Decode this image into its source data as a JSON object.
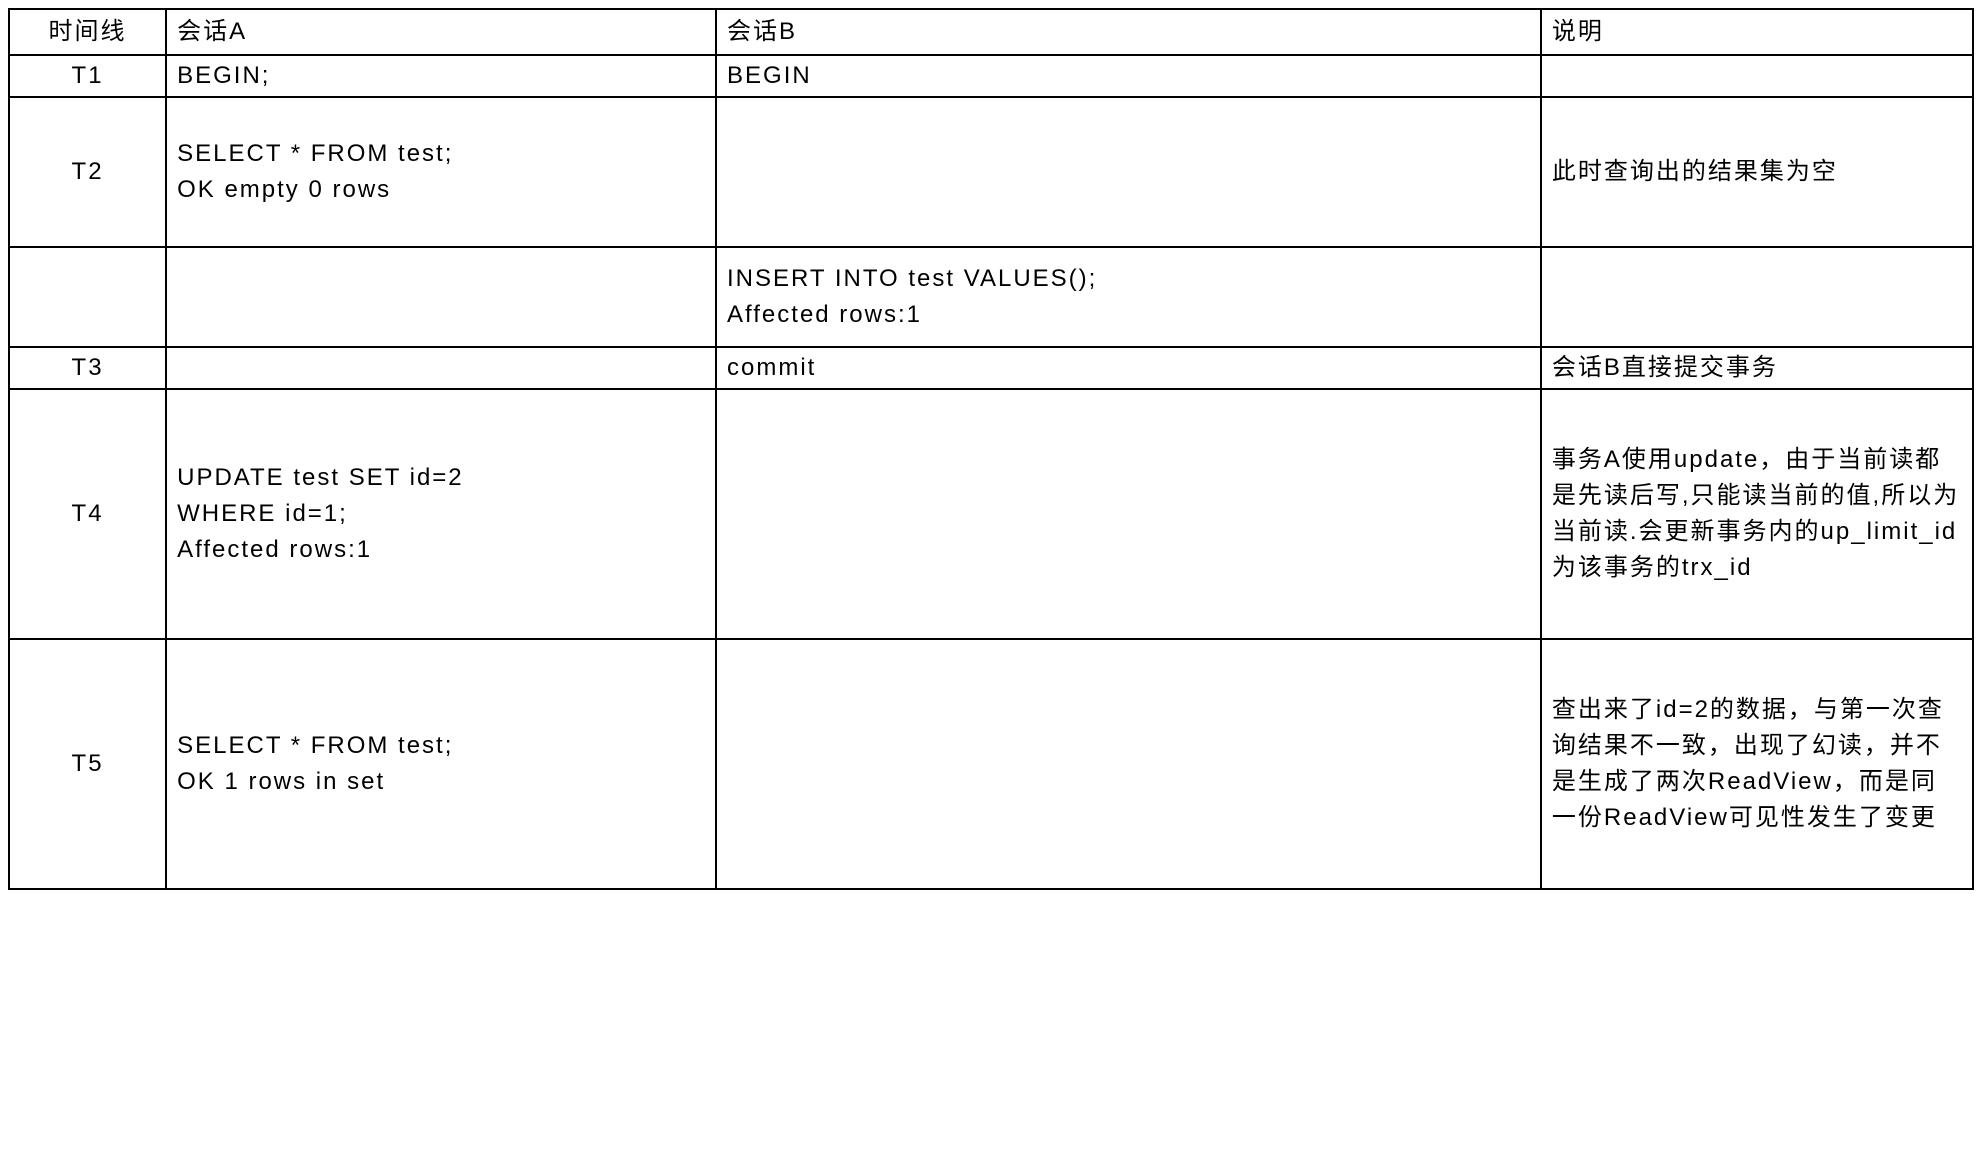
{
  "table": {
    "headers": {
      "timeline": "时间线",
      "sessionA": "会话A",
      "sessionB": "会话B",
      "description": "说明"
    },
    "rows": [
      {
        "timeline": "T1",
        "sessionA": "BEGIN;",
        "sessionB": "BEGIN",
        "description": ""
      },
      {
        "timeline": "T2",
        "sessionA": "SELECT * FROM test;\nOK empty 0 rows",
        "sessionB": "",
        "description": "此时查询出的结果集为空"
      },
      {
        "timeline": "",
        "sessionA": "",
        "sessionB": "INSERT INTO test VALUES();\nAffected rows:1",
        "description": ""
      },
      {
        "timeline": "T3",
        "sessionA": "",
        "sessionB": "commit",
        "description": "会话B直接提交事务"
      },
      {
        "timeline": "T4",
        "sessionA": "UPDATE test SET id=2\nWHERE id=1;\nAffected rows:1",
        "sessionB": "",
        "description": "事务A使用update，由于当前读都是先读后写,只能读当前的值,所以为当前读.会更新事务内的up_limit_id为该事务的trx_id"
      },
      {
        "timeline": "T5",
        "sessionA": "SELECT * FROM test;\nOK 1 rows in set",
        "sessionB": "",
        "description": "查出来了id=2的数据，与第一次查询结果不一致，出现了幻读，并不是生成了两次ReadView，而是同一份ReadView可见性发生了变更"
      }
    ]
  },
  "styling": {
    "background_color": "#ffffff",
    "border_color": "#000000",
    "text_color": "#000000",
    "font_size": 24,
    "letter_spacing": 2,
    "border_width": 2,
    "column_widths_percent": [
      8,
      28,
      42,
      22
    ]
  }
}
